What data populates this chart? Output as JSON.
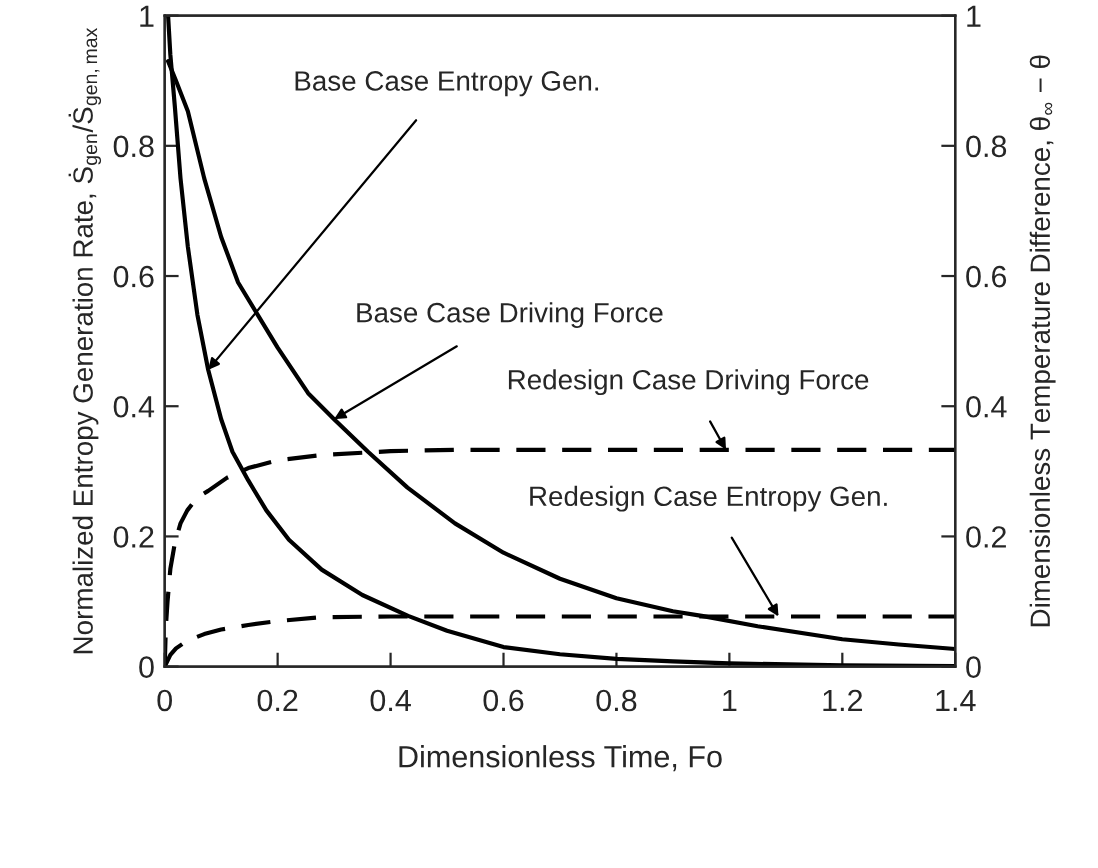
{
  "chart_data": {
    "type": "line",
    "xlabel": "Dimensionless Time, Fo",
    "ylabel": "Normalized Entropy Generation Rate, Ṡ$_{gen}$/Ṡ$_{gen,max}$",
    "y2label": "Dimensionless Temperature Difference, θ$_{∞}$ − θ",
    "xlim": [
      0,
      1.4
    ],
    "xticks": [
      0,
      0.2,
      0.4,
      0.6,
      0.8,
      1,
      1.2,
      1.4
    ],
    "ylim": [
      0,
      1
    ],
    "yticks": [
      0,
      0.2,
      0.4,
      0.6,
      0.8,
      1
    ],
    "y2lim": [
      0,
      1
    ],
    "y2ticks": [
      0,
      0.2,
      0.4,
      0.6,
      0.8,
      1
    ],
    "grid": false,
    "legend": false,
    "series": [
      {
        "color": "#000000",
        "line_style": "solid",
        "x": [
          0.006,
          0.01,
          0.018,
          0.028,
          0.041,
          0.058,
          0.077,
          0.1,
          0.12,
          0.148,
          0.18,
          0.22,
          0.278,
          0.35,
          0.431,
          0.5,
          0.6,
          0.7,
          0.8,
          0.9,
          1.0,
          1.2,
          1.4
        ],
        "values": [
          1.0,
          0.94,
          0.86,
          0.75,
          0.645,
          0.54,
          0.456,
          0.38,
          0.33,
          0.286,
          0.24,
          0.195,
          0.149,
          0.11,
          0.078,
          0.055,
          0.03,
          0.019,
          0.012,
          0.008,
          0.005,
          0.002,
          0.001
        ]
      },
      {
        "color": "#000000",
        "line_style": "solid",
        "axis": "y2",
        "x": [
          0.006,
          0.02,
          0.041,
          0.07,
          0.1,
          0.13,
          0.165,
          0.2,
          0.254,
          0.3,
          0.36,
          0.43,
          0.514,
          0.6,
          0.7,
          0.8,
          0.9,
          0.951,
          1.05,
          1.2,
          1.3,
          1.4
        ],
        "values": [
          0.93,
          0.9,
          0.853,
          0.75,
          0.66,
          0.59,
          0.54,
          0.49,
          0.42,
          0.38,
          0.33,
          0.275,
          0.22,
          0.175,
          0.135,
          0.105,
          0.085,
          0.078,
          0.062,
          0.042,
          0.034,
          0.027
        ]
      },
      {
        "color": "#000000",
        "line_style": "dashed",
        "axis": "y2",
        "x": [
          0,
          0.002,
          0.005,
          0.01,
          0.018,
          0.028,
          0.04,
          0.058,
          0.077,
          0.11,
          0.148,
          0.2,
          0.278,
          0.4,
          0.514,
          1.4
        ],
        "values": [
          0,
          0.06,
          0.1,
          0.15,
          0.19,
          0.22,
          0.24,
          0.26,
          0.27,
          0.29,
          0.305,
          0.317,
          0.325,
          0.331,
          0.333,
          0.333
        ]
      },
      {
        "color": "#000000",
        "line_style": "dashed",
        "x": [
          0,
          0.01,
          0.02,
          0.04,
          0.07,
          0.1,
          0.148,
          0.2,
          0.278,
          0.4,
          0.514,
          1.4
        ],
        "values": [
          0,
          0.018,
          0.028,
          0.04,
          0.05,
          0.057,
          0.064,
          0.07,
          0.076,
          0.077,
          0.077,
          0.077
        ]
      }
    ],
    "annotations": [
      {
        "text": "Base Case Entropy Gen.",
        "x": 0.077,
        "y": 0.456
      },
      {
        "text": "Base Case Driving Force",
        "x": 0.3,
        "y": 0.38
      },
      {
        "text": "Redesign Case Driving Force",
        "x": 0.994,
        "y": 0.333
      },
      {
        "text": "Redesign Case Entropy Gen.",
        "x": 1.087,
        "y": 0.077
      }
    ]
  }
}
